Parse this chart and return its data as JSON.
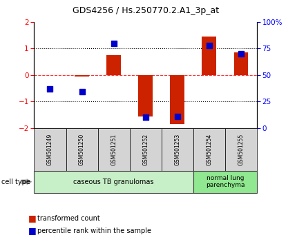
{
  "title": "GDS4256 / Hs.250770.2.A1_3p_at",
  "samples": [
    "GSM501249",
    "GSM501250",
    "GSM501251",
    "GSM501252",
    "GSM501253",
    "GSM501254",
    "GSM501255"
  ],
  "red_values": [
    0.0,
    -0.05,
    0.75,
    -1.55,
    -1.85,
    1.45,
    0.85
  ],
  "blue_values_pct": [
    37,
    34,
    80,
    10,
    11,
    78,
    70
  ],
  "ylim_left": [
    -2,
    2
  ],
  "ylim_right": [
    0,
    100
  ],
  "yticks_left": [
    -2,
    -1,
    0,
    1,
    2
  ],
  "yticks_right": [
    0,
    25,
    50,
    75,
    100
  ],
  "ytick_labels_right": [
    "0",
    "25",
    "50",
    "75",
    "100%"
  ],
  "bar_color": "#cc2200",
  "dot_color": "#0000cc",
  "cell_type_0_label": "caseous TB granulomas",
  "cell_type_0_color": "#c8f0c8",
  "cell_type_0_count": 5,
  "cell_type_1_label": "normal lung\nparenchyma",
  "cell_type_1_color": "#90e890",
  "cell_type_1_count": 2,
  "legend_red": "transformed count",
  "legend_blue": "percentile rank within the sample",
  "cell_type_label": "cell type",
  "background_color": "#ffffff",
  "sample_box_color": "#d4d4d4",
  "title_fontsize": 9,
  "tick_fontsize": 7.5,
  "sample_fontsize": 5.5,
  "cell_type_fontsize": 7,
  "legend_fontsize": 7
}
